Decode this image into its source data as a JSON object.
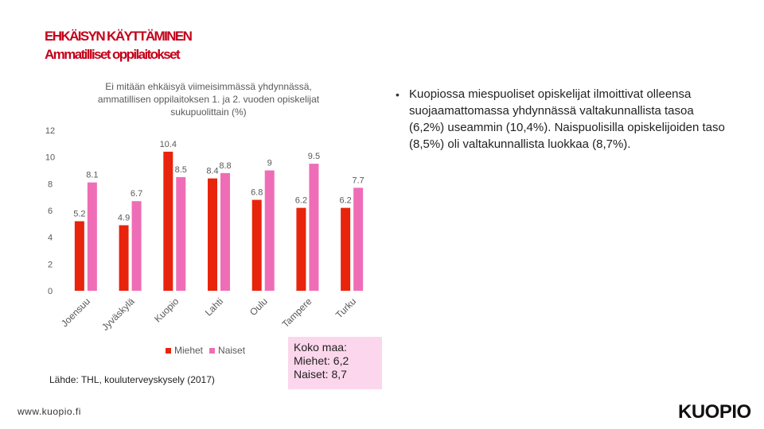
{
  "header": {
    "title": "EHKÄISYN KÄYTTÄMINEN",
    "subtitle": "Ammatilliset oppilaitokset"
  },
  "chart_data": {
    "type": "bar",
    "title_lines": [
      "Ei mitään ehkäisyä viimeisimmässä yhdynnässä,",
      "ammatillisen oppilaitoksen 1. ja 2. vuoden opiskelijat",
      "sukupuolittain (%)"
    ],
    "categories": [
      "Joensuu",
      "Jyväskylä",
      "Kuopio",
      "Lahti",
      "Oulu",
      "Tampere",
      "Turku"
    ],
    "series": [
      {
        "name": "Miehet",
        "color": "#e8240c",
        "values": [
          5.2,
          4.9,
          10.4,
          8.4,
          6.8,
          6.2,
          6.2
        ]
      },
      {
        "name": "Naiset",
        "color": "#ef6db6",
        "values": [
          8.1,
          6.7,
          8.5,
          8.8,
          9,
          9.5,
          7.7
        ]
      }
    ],
    "ylim": [
      0,
      12
    ],
    "yticks": [
      0,
      2,
      4,
      6,
      8,
      10,
      12
    ],
    "ytick_labels": [
      "0",
      "2",
      "4",
      "6",
      "8",
      "10",
      "12"
    ],
    "grid": false,
    "legend_position": "bottom"
  },
  "source": "Lähde: THL, kouluterveyskysely (2017)",
  "national": {
    "line1": "Koko maa:",
    "line2": "Miehet: 6,2",
    "line3": "Naiset: 8,7"
  },
  "bullet_symbol": "•",
  "description": "Kuopiossa miespuoliset opiskelijat ilmoittivat olleensa suojaamattomassa yhdynnässä valtakunnallista tasoa (6,2%) useammin (10,4%). Naispuolisilla opiskelijoiden taso (8,5%) oli valtakunnallista luokkaa (8,7%).",
  "footer": {
    "url": "www.kuopio.fi",
    "logo": "KUOPIO"
  }
}
